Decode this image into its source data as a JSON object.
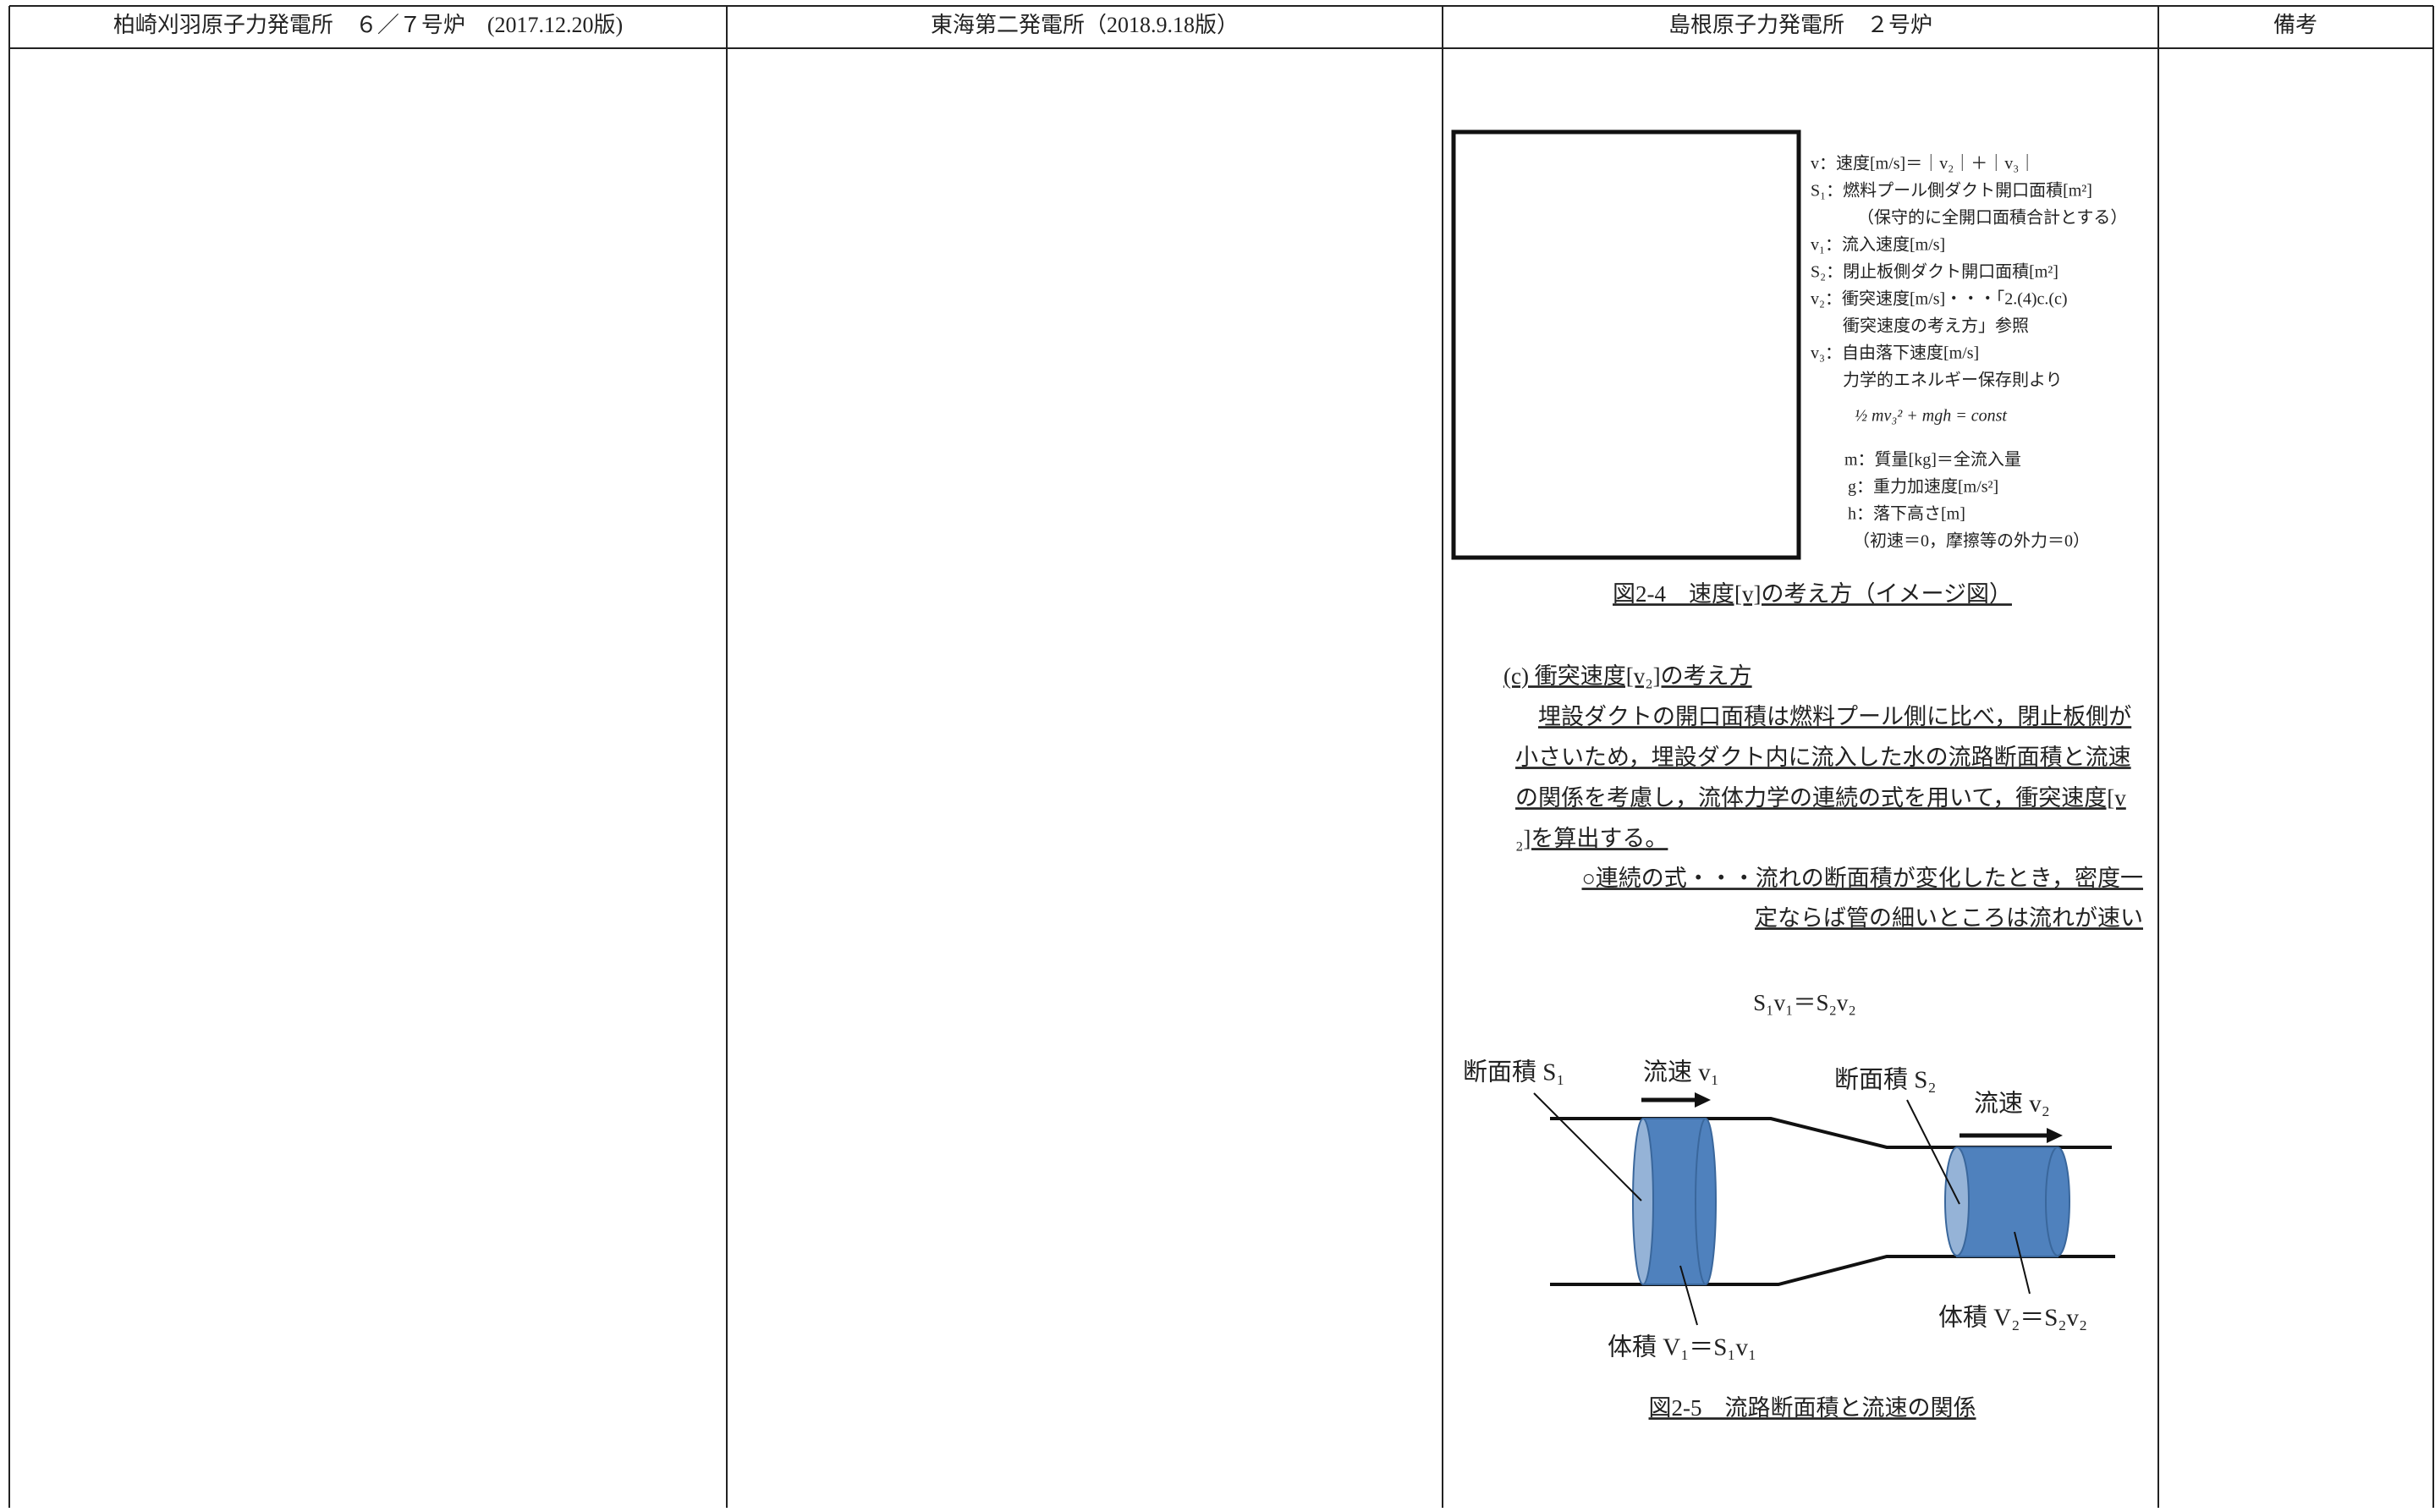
{
  "header": [
    "柏崎刈羽原子力発電所　６／７号炉　(2017.12.20版)",
    "東海第二発電所（2018.9.18版）",
    "島根原子力発電所　２号炉",
    "備考"
  ],
  "figure_2_4": {
    "legend": [
      "v：速度[m/s]＝｜v₂｜＋｜v₃｜",
      "S₁：燃料プール側ダクト開口面積[m²]",
      "（保守的に全開口面積合計とする）",
      "v₁：流入速度[m/s]",
      "S₂：閉止板側ダクト開口面積[m²]",
      "v₂：衝突速度[m/s]・・・「2.(4)c.(c)",
      "衝突速度の考え方」参照",
      "v₃：自由落下速度[m/s]",
      "力学的エネルギー保存則より"
    ],
    "formula": "½ mv₃² + mgh = const",
    "variables": [
      "m：質量[kg]＝全流入量",
      "g：重力加速度[m/s²]",
      "h：落下高さ[m]",
      "（初速＝0，摩擦等の外力＝0）"
    ],
    "caption": "図2-4　速度[v]の考え方（イメージ図）"
  },
  "section_c": {
    "heading": "(c) 衝突速度[v₂]の考え方",
    "paragraph": [
      "埋設ダクトの開口面積は燃料プール側に比べ，閉止板側が",
      "小さいため，埋設ダクト内に流入した水の流路断面積と流速",
      "の関係を考慮し，流体力学の連続の式を用いて，衝突速度[v",
      "₂]を算出する。"
    ],
    "note": [
      "○連続の式・・・流れの断面積が変化したとき，密度一",
      "定ならば管の細いところは流れが速い"
    ],
    "equation": "S₁v₁＝S₂v₂"
  },
  "figure_2_5": {
    "labels": [
      "断面積 S₁",
      "流速 v₁",
      "断面積 S₂",
      "流速 v₂",
      "体積 V₁＝S₁v₁",
      "体積 V₂＝S₂v₂"
    ],
    "caption": "図2-5　流路断面積と流速の関係"
  }
}
